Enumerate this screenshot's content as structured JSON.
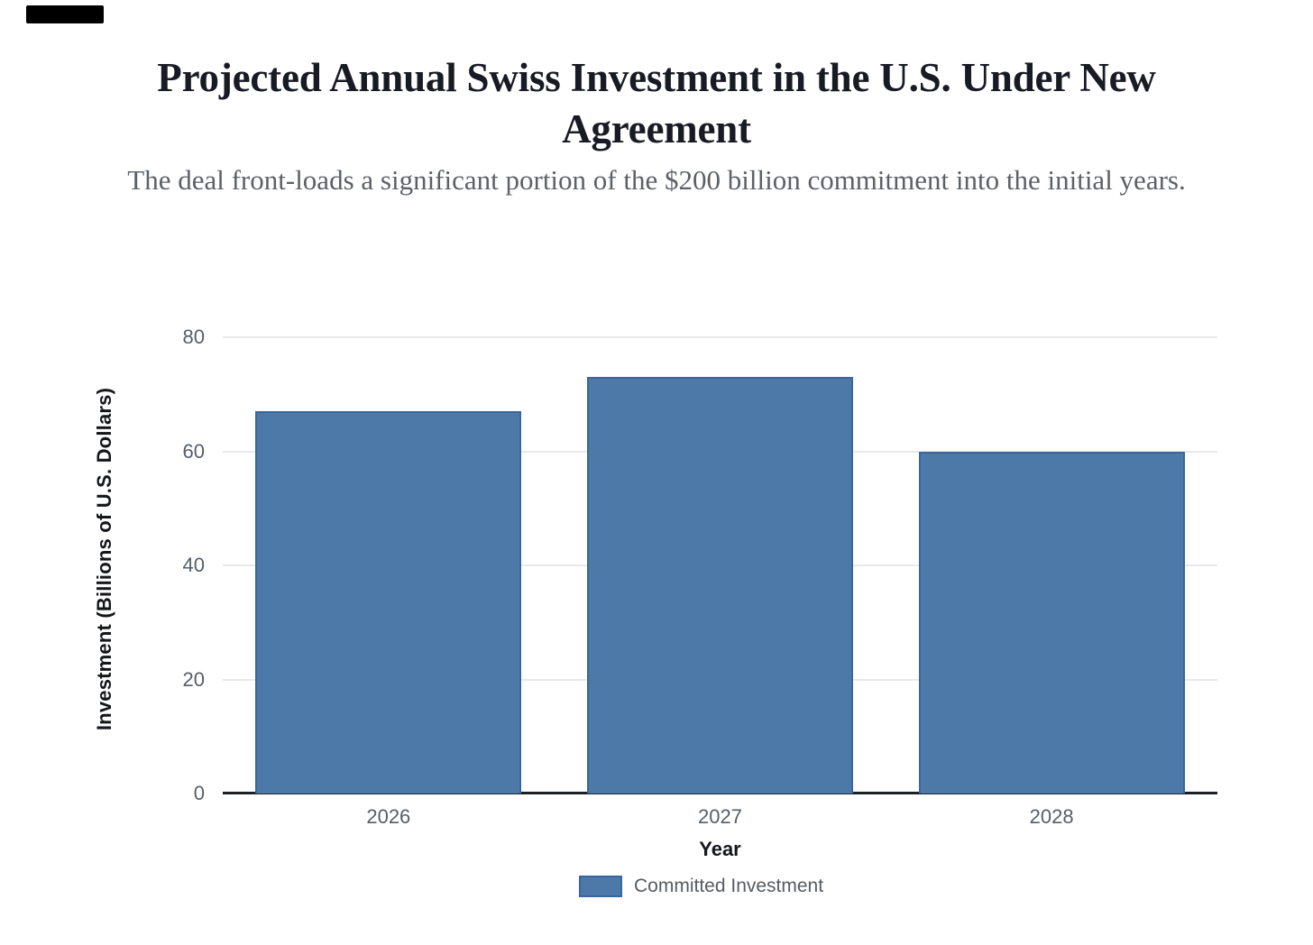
{
  "decorations": {
    "top_left_bar_color": "#000000"
  },
  "header": {
    "title": "Projected Annual Swiss Investment in the U.S. Under New Agreement",
    "subtitle": "The deal front-loads a significant portion of the $200 billion commitment into the initial years."
  },
  "chart_data": {
    "type": "bar",
    "title": "Projected Annual Swiss Investment in the U.S. Under New Agreement",
    "subtitle": "The deal front-loads a significant portion of the $200 billion commitment into the initial years.",
    "categories": [
      "2026",
      "2027",
      "2028"
    ],
    "series": [
      {
        "name": "Committed Investment",
        "values": [
          67,
          73,
          60
        ]
      }
    ],
    "xlabel": "Year",
    "ylabel": "Investment (Billions of U.S. Dollars)",
    "ylim": [
      0,
      80
    ],
    "yticks": [
      0,
      20,
      40,
      60,
      80
    ],
    "grid": true,
    "legend_position": "bottom",
    "bar_color": "#4d79a8",
    "bar_border_color": "#3b669c",
    "gridline_color": "#e9e9ec",
    "axis_line_color": "#1d2025",
    "tick_label_color": "#565e68"
  },
  "legend": {
    "items": [
      {
        "label": "Committed Investment",
        "color": "#4d79a8"
      }
    ]
  }
}
